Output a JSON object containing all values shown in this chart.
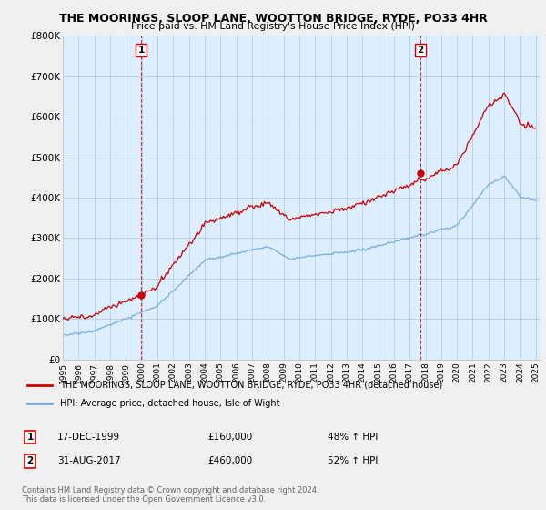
{
  "title": "THE MOORINGS, SLOOP LANE, WOOTTON BRIDGE, RYDE, PO33 4HR",
  "subtitle": "Price paid vs. HM Land Registry's House Price Index (HPI)",
  "property_label": "THE MOORINGS, SLOOP LANE, WOOTTON BRIDGE, RYDE, PO33 4HR (detached house)",
  "hpi_label": "HPI: Average price, detached house, Isle of Wight",
  "footnote1": "Contains HM Land Registry data © Crown copyright and database right 2024.",
  "footnote2": "This data is licensed under the Open Government Licence v3.0.",
  "sale1_label": "1",
  "sale1_date": "17-DEC-1999",
  "sale1_price": "£160,000",
  "sale1_hpi": "48% ↑ HPI",
  "sale2_label": "2",
  "sale2_date": "31-AUG-2017",
  "sale2_price": "£460,000",
  "sale2_hpi": "52% ↑ HPI",
  "property_color": "#cc0000",
  "hpi_color": "#7aadde",
  "highlight_color": "#ddeeff",
  "background_color": "#f0f0f0",
  "plot_bg_color": "#ddeeff",
  "ylim": [
    0,
    800000
  ],
  "yticks": [
    0,
    100000,
    200000,
    300000,
    400000,
    500000,
    600000,
    700000,
    800000
  ],
  "ytick_labels": [
    "£0",
    "£100K",
    "£200K",
    "£300K",
    "£400K",
    "£500K",
    "£600K",
    "£700K",
    "£800K"
  ],
  "sale1_year": 1999.96,
  "sale1_value": 160000,
  "sale2_year": 2017.67,
  "sale2_value": 460000
}
